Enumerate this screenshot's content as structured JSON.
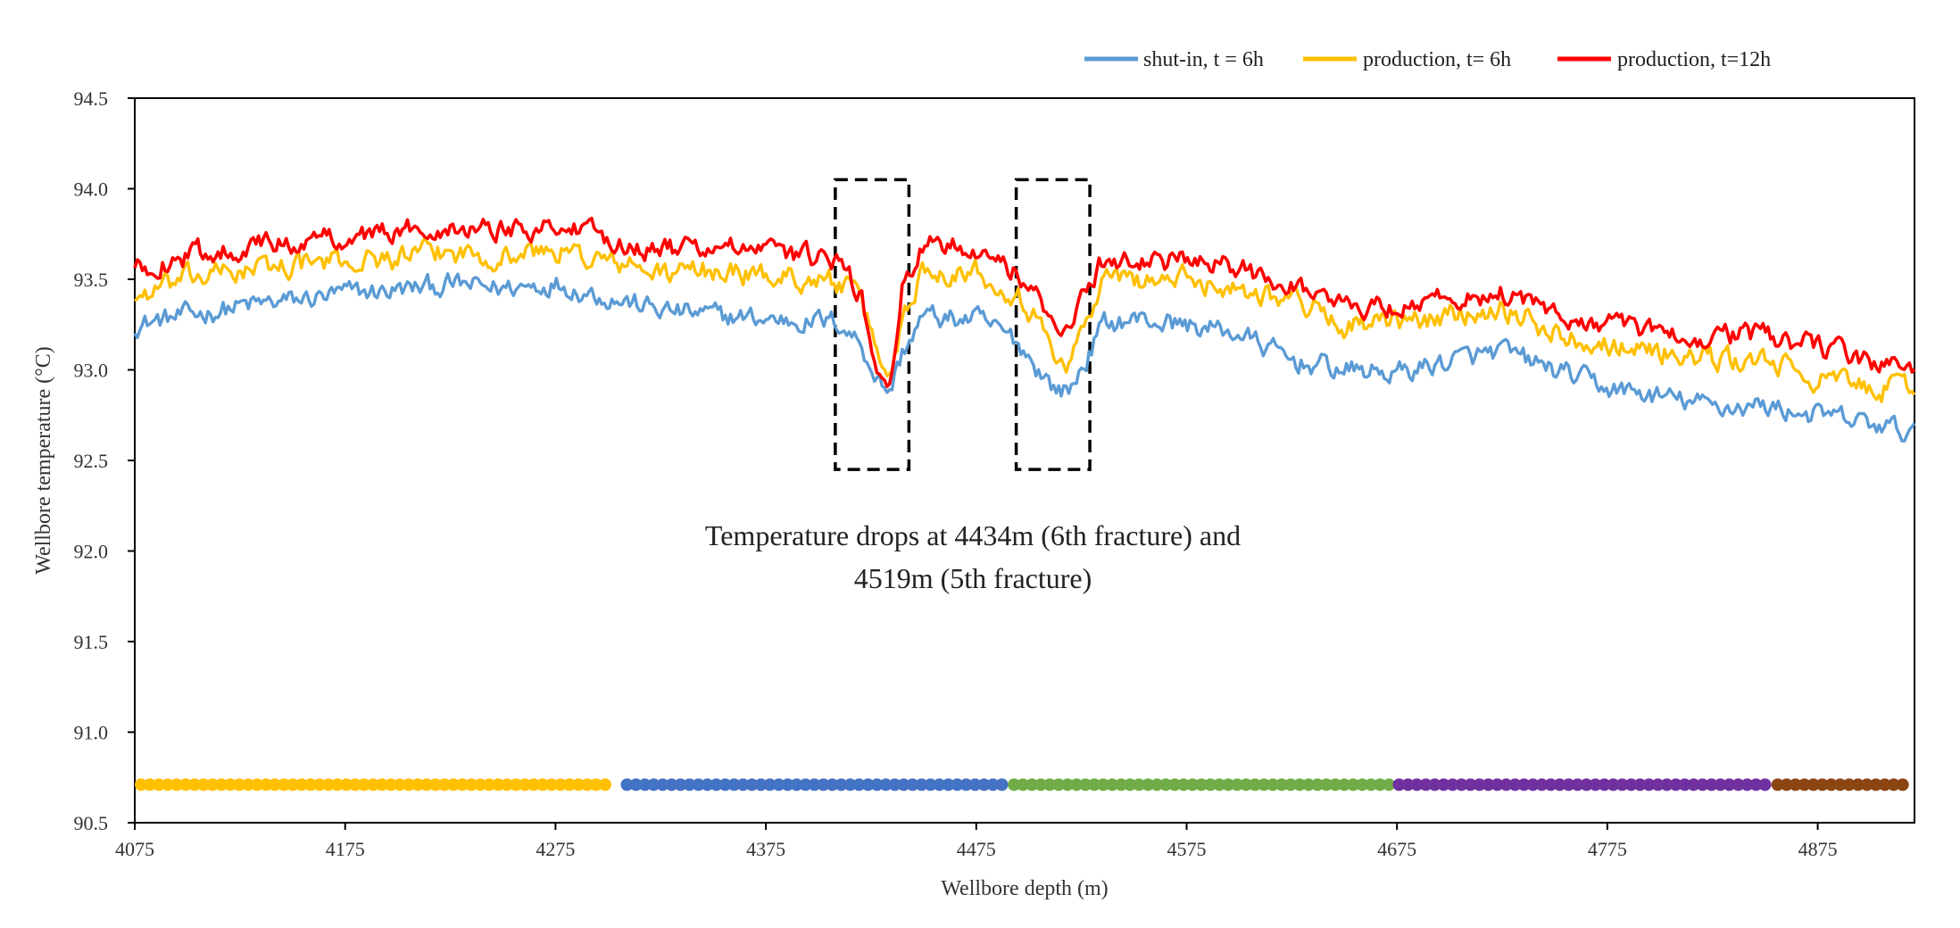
{
  "chart_data": {
    "type": "line",
    "title": "",
    "xlabel": "Wellbore depth (m)",
    "ylabel": "Wellbore temperature (°C)",
    "xlim": [
      4075,
      4921
    ],
    "ylim": [
      90.5,
      94.5
    ],
    "xticks": [
      4075,
      4175,
      4275,
      4375,
      4475,
      4575,
      4675,
      4775,
      4875
    ],
    "yticks": [
      90.5,
      91.0,
      91.5,
      92.0,
      92.5,
      93.0,
      93.5,
      94.0,
      94.5
    ],
    "xtick_labels": [
      "4075",
      "4175",
      "4275",
      "4375",
      "4475",
      "4575",
      "4675",
      "4775",
      "4875"
    ],
    "ytick_labels": [
      "90.5",
      "91.0",
      "91.5",
      "92.0",
      "92.5",
      "93.0",
      "93.5",
      "94.0",
      "94.5"
    ],
    "legend_position": "top-right",
    "series": [
      {
        "name": "shut-in, t = 6h",
        "color": "#5B9BD5",
        "x": [
          4075,
          4100,
          4125,
          4150,
          4175,
          4200,
          4225,
          4250,
          4275,
          4300,
          4325,
          4350,
          4375,
          4400,
          4410,
          4420,
          4428,
          4434,
          4440,
          4450,
          4460,
          4475,
          4485,
          4495,
          4505,
          4512,
          4519,
          4527,
          4535,
          4550,
          4575,
          4600,
          4625,
          4650,
          4675,
          4700,
          4725,
          4750,
          4775,
          4800,
          4825,
          4850,
          4875,
          4900,
          4921
        ],
        "y": [
          93.25,
          93.3,
          93.35,
          93.38,
          93.42,
          93.44,
          93.47,
          93.45,
          93.48,
          93.4,
          93.33,
          93.3,
          93.28,
          93.27,
          93.26,
          93.15,
          92.95,
          92.88,
          93.1,
          93.3,
          93.28,
          93.28,
          93.22,
          93.15,
          93.0,
          92.9,
          92.88,
          93.05,
          93.25,
          93.28,
          93.25,
          93.2,
          93.05,
          93.0,
          92.98,
          93.05,
          93.1,
          93.0,
          92.9,
          92.85,
          92.8,
          92.8,
          92.75,
          92.7,
          92.65
        ]
      },
      {
        "name": "production, t= 6h",
        "color": "#FFC000",
        "x": [
          4075,
          4100,
          4125,
          4150,
          4175,
          4200,
          4225,
          4250,
          4275,
          4300,
          4325,
          4350,
          4375,
          4400,
          4410,
          4420,
          4428,
          4434,
          4440,
          4450,
          4460,
          4475,
          4485,
          4495,
          4505,
          4512,
          4519,
          4527,
          4535,
          4550,
          4575,
          4600,
          4625,
          4650,
          4675,
          4700,
          4725,
          4750,
          4775,
          4800,
          4825,
          4850,
          4875,
          4900,
          4921
        ],
        "y": [
          93.4,
          93.5,
          93.55,
          93.58,
          93.6,
          93.62,
          93.65,
          93.63,
          93.66,
          93.6,
          93.53,
          93.55,
          93.52,
          93.5,
          93.48,
          93.38,
          93.1,
          92.95,
          93.3,
          93.55,
          93.55,
          93.55,
          93.48,
          93.42,
          93.25,
          93.1,
          93.05,
          93.25,
          93.5,
          93.5,
          93.5,
          93.45,
          93.4,
          93.25,
          93.25,
          93.3,
          93.35,
          93.2,
          93.15,
          93.1,
          93.05,
          93.05,
          92.95,
          92.9,
          92.9
        ]
      },
      {
        "name": "production, t=12h",
        "color": "#FF0000",
        "x": [
          4075,
          4100,
          4125,
          4150,
          4175,
          4200,
          4225,
          4250,
          4275,
          4300,
          4325,
          4350,
          4375,
          4400,
          4410,
          4420,
          4428,
          4434,
          4440,
          4450,
          4460,
          4475,
          4485,
          4495,
          4505,
          4512,
          4519,
          4527,
          4535,
          4550,
          4575,
          4600,
          4625,
          4650,
          4675,
          4700,
          4725,
          4750,
          4775,
          4800,
          4825,
          4850,
          4875,
          4900,
          4921
        ],
        "y": [
          93.55,
          93.63,
          93.68,
          93.7,
          93.74,
          93.76,
          93.8,
          93.78,
          93.8,
          93.72,
          93.66,
          93.68,
          93.65,
          93.62,
          93.58,
          93.42,
          93.0,
          92.88,
          93.45,
          93.68,
          93.7,
          93.68,
          93.6,
          93.52,
          93.38,
          93.25,
          93.28,
          93.42,
          93.6,
          93.6,
          93.6,
          93.55,
          93.48,
          93.35,
          93.35,
          93.4,
          93.42,
          93.3,
          93.25,
          93.2,
          93.18,
          93.2,
          93.12,
          93.05,
          93.0
        ]
      }
    ],
    "annotations": [
      {
        "text_line1": "Temperature drops  at 4434m (6th fracture) and",
        "text_line2": "4519m (5th fracture)"
      }
    ],
    "highlight_boxes": [
      {
        "x_from": 4408,
        "x_to": 4443,
        "y_from": 92.45,
        "y_to": 94.05
      },
      {
        "x_from": 4494,
        "x_to": 4529,
        "y_from": 92.45,
        "y_to": 94.05
      }
    ],
    "zone_markers": [
      {
        "x_from": 4075,
        "x_to": 4302,
        "y": 90.71,
        "color": "#FFC000"
      },
      {
        "x_from": 4306,
        "x_to": 4490,
        "y": 90.71,
        "color": "#4472C4"
      },
      {
        "x_from": 4490,
        "x_to": 4673,
        "y": 90.71,
        "color": "#70AD47"
      },
      {
        "x_from": 4673,
        "x_to": 4853,
        "y": 90.71,
        "color": "#7030A0"
      },
      {
        "x_from": 4853,
        "x_to": 4921,
        "y": 90.71,
        "color": "#8B4513"
      }
    ]
  }
}
